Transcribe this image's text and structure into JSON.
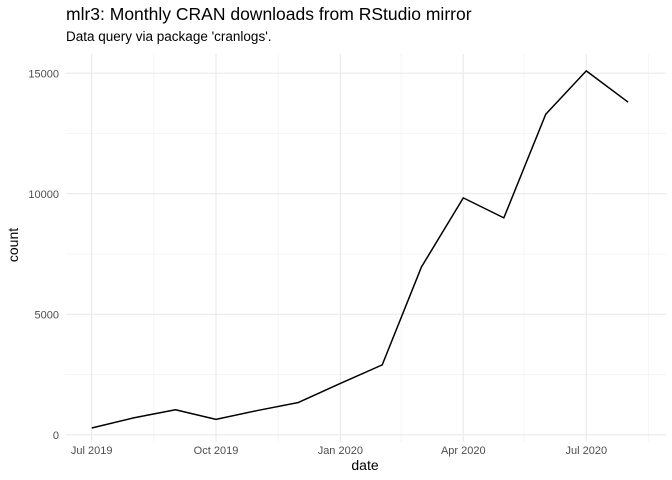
{
  "chart_data": {
    "type": "line",
    "title": "mlr3: Monthly CRAN downloads from RStudio mirror",
    "subtitle": "Data query via package 'cranlogs'.",
    "xlabel": "date",
    "ylabel": "count",
    "x": [
      "2019-07-01",
      "2019-08-01",
      "2019-09-01",
      "2019-10-01",
      "2019-11-01",
      "2019-12-01",
      "2020-01-01",
      "2020-02-01",
      "2020-03-01",
      "2020-04-01",
      "2020-05-01",
      "2020-06-01",
      "2020-07-01",
      "2020-08-01"
    ],
    "series": [
      {
        "values": [
          280,
          700,
          1040,
          640,
          1010,
          1340,
          2130,
          2900,
          6960,
          9830,
          9000,
          13300,
          15100,
          13800
        ]
      }
    ],
    "xlim": [
      "2019-06-12",
      "2020-08-29"
    ],
    "ylim": [
      -300,
      15800
    ],
    "x_ticks": [
      {
        "date": "2019-07-01",
        "label": "Jul 2019"
      },
      {
        "date": "2019-10-01",
        "label": "Oct 2019"
      },
      {
        "date": "2020-01-01",
        "label": "Jan 2020"
      },
      {
        "date": "2020-04-01",
        "label": "Apr 2020"
      },
      {
        "date": "2020-07-01",
        "label": "Jul 2020"
      }
    ],
    "x_minor_ticks": [
      "2019-08-16",
      "2019-11-16",
      "2020-02-15",
      "2020-05-16",
      "2020-08-16"
    ],
    "y_ticks": [
      {
        "value": 0,
        "label": "0"
      },
      {
        "value": 5000,
        "label": "5000"
      },
      {
        "value": 10000,
        "label": "10000"
      },
      {
        "value": 15000,
        "label": "15000"
      }
    ],
    "y_minor_ticks": [
      2500,
      7500,
      12500
    ],
    "grid": true,
    "legend": "none",
    "colors": {
      "line": "#000000",
      "grid_major": "#ebebeb",
      "grid_minor": "#f5f5f5",
      "tick_label": "#4d4d4d"
    }
  }
}
